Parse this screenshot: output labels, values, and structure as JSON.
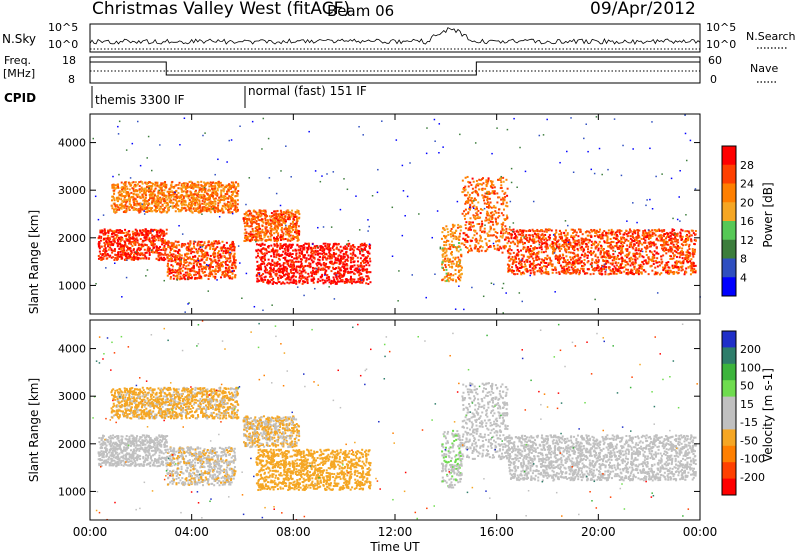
{
  "header": {
    "station": "Christmas Valley West (fitACF)",
    "beam": "Beam 06",
    "date": "09/Apr/2012"
  },
  "strips": {
    "nsky": {
      "label": "N.Sky",
      "left_ticks": [
        "10^5",
        "10^0"
      ],
      "right_ticks": [
        "10^5",
        "10^0"
      ],
      "right_label": "N.Search"
    },
    "freq": {
      "label_line1": "Freq.",
      "label_line2": "[MHz]",
      "left_ticks": [
        "18",
        "8"
      ],
      "right_ticks": [
        "60",
        "0"
      ],
      "right_label": "Nave"
    },
    "cpid": {
      "label": "CPID",
      "modes": [
        "themis 3300 IF",
        "normal (fast) 151 IF"
      ]
    }
  },
  "colors": {
    "power_scale": [
      "#0000ff",
      "#2f4fc0",
      "#3c7d3c",
      "#56c856",
      "#f5a623",
      "#ff7f00",
      "#ff4000",
      "#ff0000"
    ],
    "velocity_scale": [
      "#1f2fc8",
      "#2e7d6a",
      "#3cb43c",
      "#6fdc4f",
      "#c0c0c0",
      "#c0c0c0",
      "#f5a623",
      "#ff7f00",
      "#ff4000",
      "#ff0000"
    ],
    "ground_scatter": "#bebebe"
  },
  "chart_data": [
    {
      "type": "heatmap",
      "panel": "power",
      "xlabel": "",
      "ylabel": "Slant Range [km]",
      "x_range": [
        "00:00",
        "24:00"
      ],
      "ylim": [
        400,
        4600
      ],
      "yticks": [
        1000,
        2000,
        3000,
        4000
      ],
      "colorbar": {
        "label": "Power [dB]",
        "ticks": [
          4,
          8,
          12,
          16,
          20,
          24,
          28
        ],
        "range": [
          0,
          32
        ]
      },
      "echo_regions": [
        {
          "t_start": 0.3,
          "t_end": 3.0,
          "r_low": 1550,
          "r_high": 2200,
          "power": 28
        },
        {
          "t_start": 0.8,
          "t_end": 5.8,
          "r_low": 2550,
          "r_high": 3200,
          "power": 22
        },
        {
          "t_start": 3.0,
          "t_end": 5.7,
          "r_low": 1150,
          "r_high": 1950,
          "power": 26
        },
        {
          "t_start": 6.0,
          "t_end": 8.2,
          "r_low": 1950,
          "r_high": 2600,
          "power": 24
        },
        {
          "t_start": 6.5,
          "t_end": 11.0,
          "r_low": 1050,
          "r_high": 1900,
          "power": 30
        },
        {
          "t_start": 13.8,
          "t_end": 14.6,
          "r_low": 1100,
          "r_high": 2300,
          "power": 20
        },
        {
          "t_start": 14.6,
          "t_end": 16.4,
          "r_low": 1700,
          "r_high": 3300,
          "power": 24
        },
        {
          "t_start": 16.4,
          "t_end": 23.8,
          "r_low": 1250,
          "r_high": 2200,
          "power": 26
        }
      ]
    },
    {
      "type": "heatmap",
      "panel": "velocity",
      "xlabel": "Time UT",
      "ylabel": "Slant Range [km]",
      "x_range": [
        "00:00",
        "24:00"
      ],
      "xticks": [
        "00:00",
        "04:00",
        "08:00",
        "12:00",
        "16:00",
        "20:00",
        "00:00"
      ],
      "ylim": [
        400,
        4600
      ],
      "yticks": [
        1000,
        2000,
        3000,
        4000
      ],
      "colorbar": {
        "label": "Velocity [m s-1]",
        "ticks": [
          200,
          100,
          50,
          15,
          -15,
          -50,
          -100,
          -200
        ],
        "range": [
          -250,
          250
        ]
      },
      "echo_regions": [
        {
          "t_start": 0.3,
          "t_end": 3.0,
          "r_low": 1550,
          "r_high": 2200,
          "velocity": 0
        },
        {
          "t_start": 0.8,
          "t_end": 5.8,
          "r_low": 2550,
          "r_high": 3200,
          "velocity": -60
        },
        {
          "t_start": 3.0,
          "t_end": 5.7,
          "r_low": 1150,
          "r_high": 1950,
          "velocity": -40
        },
        {
          "t_start": 6.0,
          "t_end": 8.2,
          "r_low": 1950,
          "r_high": 2600,
          "velocity": -50
        },
        {
          "t_start": 6.5,
          "t_end": 11.0,
          "r_low": 1050,
          "r_high": 1900,
          "velocity": -70
        },
        {
          "t_start": 13.8,
          "t_end": 14.6,
          "r_low": 1100,
          "r_high": 2300,
          "velocity": 40
        },
        {
          "t_start": 14.6,
          "t_end": 16.4,
          "r_low": 1700,
          "r_high": 3300,
          "velocity": 0
        },
        {
          "t_start": 16.4,
          "t_end": 23.8,
          "r_low": 1250,
          "r_high": 2200,
          "velocity": 0
        }
      ]
    }
  ]
}
